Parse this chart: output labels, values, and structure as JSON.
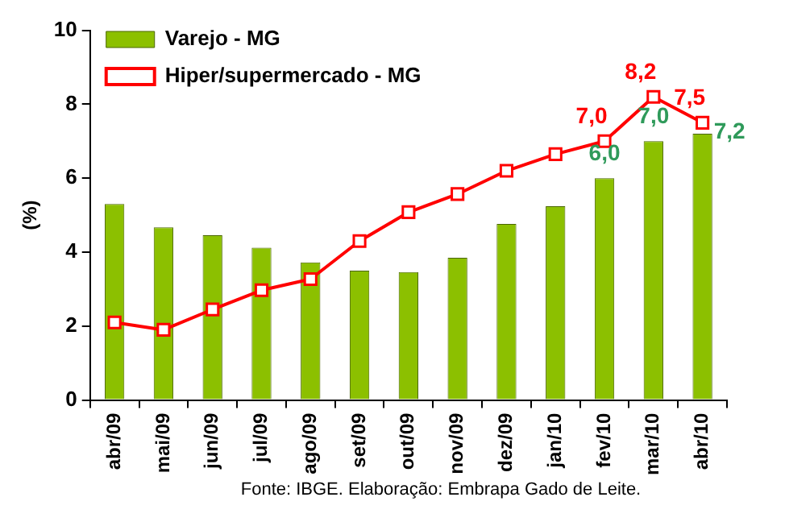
{
  "chart_data": {
    "type": "bar",
    "ylabel": "(%)",
    "categories": [
      "abr/09",
      "mai/09",
      "jun/09",
      "jul/09",
      "ago/09",
      "set/09",
      "out/09",
      "nov/09",
      "dez/09",
      "jan/10",
      "fev/10",
      "mar/10",
      "abr/10"
    ],
    "series": [
      {
        "name": "Varejo - MG",
        "color": "#8cc000",
        "values": [
          5.3,
          4.67,
          4.46,
          4.12,
          3.72,
          3.5,
          3.46,
          3.85,
          4.76,
          5.24,
          6.0,
          7.0,
          7.2
        ],
        "value_labels": [
          null,
          null,
          null,
          null,
          null,
          null,
          null,
          null,
          null,
          null,
          "6,0",
          "7,0",
          "7,2"
        ]
      },
      {
        "name": "Hiper/supermercado - MG",
        "type": "line",
        "color": "#ff0000",
        "values": [
          2.1,
          1.9,
          2.45,
          2.97,
          3.27,
          4.3,
          5.08,
          5.57,
          6.2,
          6.65,
          7.0,
          8.2,
          7.5
        ],
        "value_labels": [
          null,
          null,
          null,
          null,
          null,
          null,
          null,
          null,
          null,
          null,
          "7,0",
          "8,2",
          "7,5"
        ]
      }
    ],
    "ylim": [
      0,
      10
    ],
    "yticks": [
      0,
      2,
      4,
      6,
      8,
      10
    ],
    "grid": false,
    "legend": "top left",
    "marker": "square",
    "line_style": "solid",
    "annotations": [
      "Fonte: IBGE. Elaboração: Embrapa Gado de Leite."
    ]
  }
}
